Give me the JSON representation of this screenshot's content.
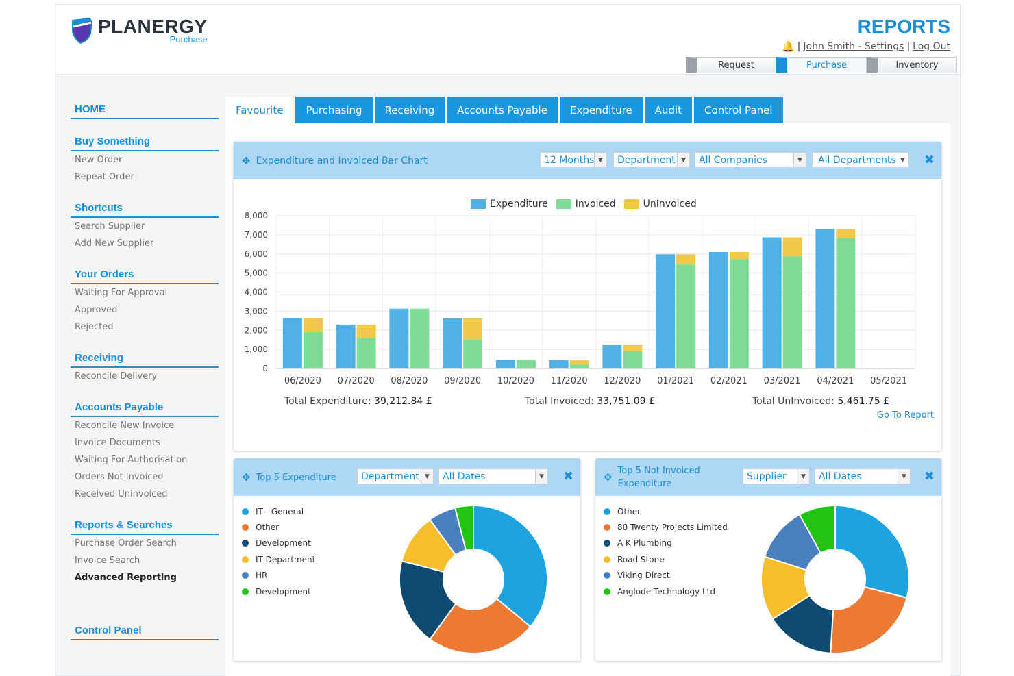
{
  "brand": {
    "name": "PLANERGY",
    "sub": "Purchase"
  },
  "header": {
    "title": "REPORTS",
    "user": "John Smith - Settings",
    "logout": "Log Out",
    "separator": "|",
    "mode_tabs": [
      "Request",
      "Purchase",
      "Inventory"
    ],
    "active_mode": "Purchase"
  },
  "sidebar": {
    "sections": [
      {
        "head": "HOME",
        "items": []
      },
      {
        "head": "Buy Something",
        "items": [
          "New Order",
          "Repeat Order"
        ]
      },
      {
        "head": "Shortcuts",
        "items": [
          "Search Supplier",
          "Add New Supplier"
        ]
      },
      {
        "head": "Your Orders",
        "items": [
          "Waiting For Approval",
          "Approved",
          "Rejected"
        ]
      },
      {
        "head": "Receiving",
        "items": [
          "Reconcile Delivery"
        ]
      },
      {
        "head": "Accounts Payable",
        "items": [
          "Reconcile New Invoice",
          "Invoice Documents",
          "Waiting For Authorisation",
          "Orders Not Invoiced",
          "Received Uninvoiced"
        ]
      },
      {
        "head": "Reports & Searches",
        "items": [
          "Purchase Order Search",
          "Invoice Search",
          "Advanced Reporting"
        ]
      },
      {
        "head": "Control Panel",
        "items": []
      }
    ]
  },
  "tabs": [
    "Favourite",
    "Purchasing",
    "Receiving",
    "Accounts Payable",
    "Expenditure",
    "Audit",
    "Control Panel"
  ],
  "bar_widget": {
    "title": "Expenditure and Invoiced Bar Chart",
    "filters": [
      "12 Months",
      "Department",
      "All Companies",
      "All Departments"
    ],
    "total_expenditure_label": "Total Expenditure:",
    "total_expenditure": "39,212.84 £",
    "total_invoiced_label": "Total Invoiced:",
    "total_invoiced": "33,751.09 £",
    "total_uninvoiced_label": "Total UnInvoiced:",
    "total_uninvoiced": "5,461.75 £",
    "go_to_report": "Go To Report"
  },
  "pie1_widget": {
    "title": "Top 5 Expenditure",
    "filters": [
      "Department",
      "All Dates"
    ]
  },
  "pie2_widget": {
    "title_line1": "Top 5 Not Invoiced",
    "title_line2": "Expenditure",
    "filters": [
      "Supplier",
      "All Dates"
    ]
  },
  "colors": {
    "expenditure": "#4fb1e6",
    "invoiced": "#7fdc97",
    "uninvoiced": "#f0c94a",
    "pie": [
      "#1ea3e0",
      "#ec7a35",
      "#0f4a70",
      "#f7bd2b",
      "#4a80c0",
      "#22c414"
    ]
  },
  "chart_data": [
    {
      "type": "bar",
      "categories": [
        "06/2020",
        "07/2020",
        "08/2020",
        "09/2020",
        "10/2020",
        "11/2020",
        "12/2020",
        "01/2021",
        "02/2021",
        "03/2021",
        "04/2021",
        "05/2021"
      ],
      "series": [
        {
          "name": "Expenditure",
          "values": [
            2650,
            2300,
            3130,
            2620,
            450,
            430,
            1250,
            5980,
            6100,
            6870,
            7300,
            0
          ]
        },
        {
          "name": "Invoiced",
          "values": [
            1900,
            1600,
            3130,
            1520,
            450,
            200,
            940,
            5450,
            5720,
            5880,
            6820,
            0
          ]
        },
        {
          "name": "UnInvoiced",
          "values": [
            750,
            700,
            0,
            1100,
            0,
            230,
            310,
            530,
            380,
            990,
            480,
            0
          ]
        }
      ],
      "stacked_series": [
        "Invoiced",
        "UnInvoiced"
      ],
      "yticks": [
        "0",
        "1,000",
        "2,000",
        "3,000",
        "4,000",
        "5,000",
        "6,000",
        "7,000",
        "8,000"
      ],
      "ylim": [
        0,
        8000
      ],
      "grid": true,
      "legend": "top-center"
    },
    {
      "type": "pie",
      "labels": [
        "IT - General",
        "Other",
        "Development",
        "IT Department",
        "HR",
        "Development"
      ],
      "values": [
        36,
        24,
        19,
        11,
        6,
        4
      ],
      "donut": true,
      "legend": "left"
    },
    {
      "type": "pie",
      "labels": [
        "Other",
        "80 Twenty Projects Limited",
        "A K Plumbing",
        "Road Stone",
        "Viking Direct",
        "Anglode Technology Ltd"
      ],
      "values": [
        29,
        22,
        15,
        14,
        12,
        8
      ],
      "donut": true,
      "legend": "left"
    }
  ]
}
